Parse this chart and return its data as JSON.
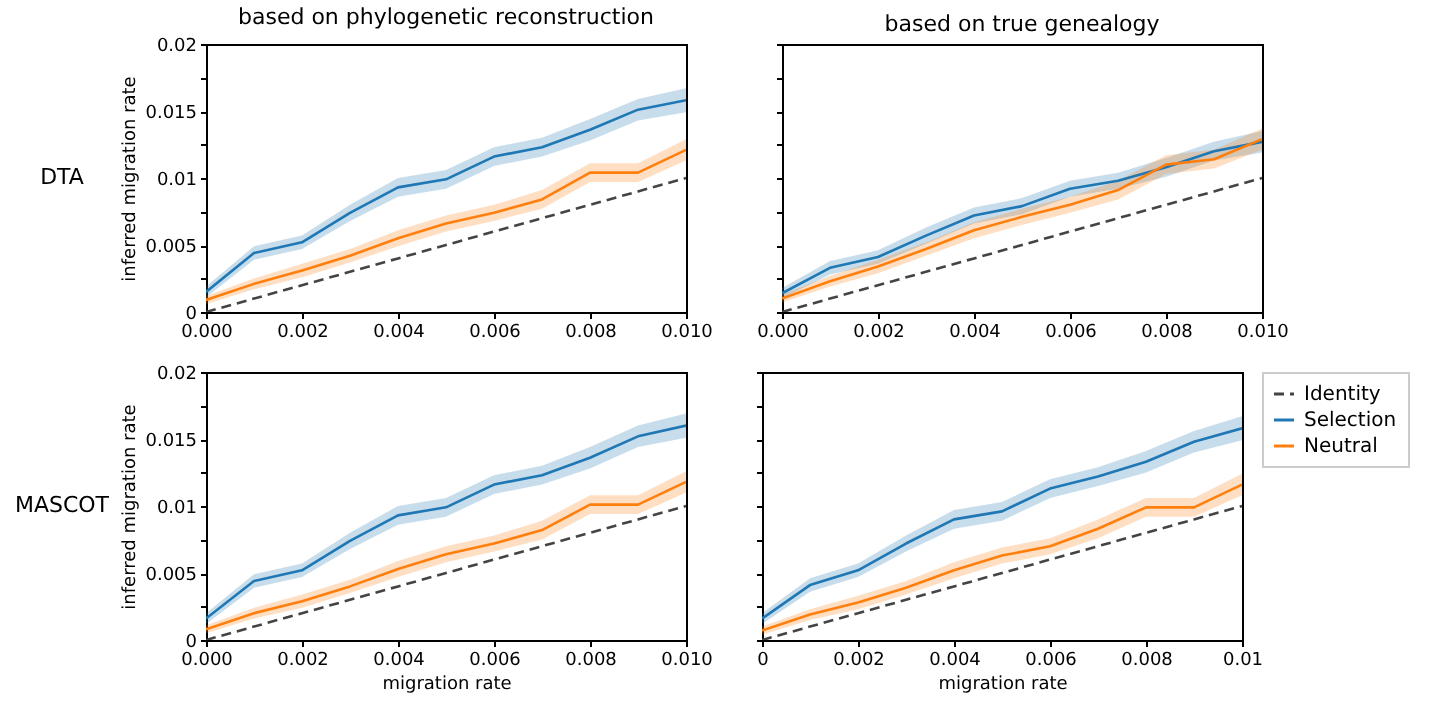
{
  "chart_data": [
    {
      "type": "line",
      "title": "based on phylogenetic reconstruction",
      "ylabel": "inferred migration rate",
      "annotations": [
        "DTA"
      ],
      "tick_labels": true,
      "legend": false,
      "grid": false,
      "x": [
        0,
        0.001,
        0.002,
        0.003,
        0.004,
        0.005,
        0.006,
        0.007,
        0.008,
        0.009,
        0.01
      ],
      "xlim": [
        0,
        0.01
      ],
      "ylim": [
        0,
        0.02
      ],
      "xticks": [
        {
          "value": 0,
          "label": "0.000"
        },
        {
          "value": 0.002,
          "label": "0.002"
        },
        {
          "value": 0.004,
          "label": "0.004"
        },
        {
          "value": 0.006,
          "label": "0.006"
        },
        {
          "value": 0.008,
          "label": "0.008"
        },
        {
          "value": 0.01,
          "label": "0.010"
        }
      ],
      "yticks": [
        0,
        {
          "value": 0.0025,
          "label": null
        },
        0.005,
        {
          "value": 0.0075,
          "label": null
        },
        0.01,
        {
          "value": 0.0125,
          "label": null
        },
        0.015,
        {
          "value": 0.0175,
          "label": null
        },
        0.02
      ],
      "series": [
        {
          "color": "#444444",
          "line_style": "dashed",
          "values": [
            0,
            0.001,
            0.002,
            0.003,
            0.004,
            0.005,
            0.006,
            0.007,
            0.008,
            0.009,
            0.01
          ]
        },
        {
          "color": "#1f77b4",
          "line_style": "solid",
          "values": [
            0.0015,
            0.0044,
            0.0052,
            0.0074,
            0.0093,
            0.0099,
            0.0116,
            0.0123,
            0.0136,
            0.0151,
            0.0158
          ],
          "lower": [
            0.0011,
            0.0039,
            0.0047,
            0.0068,
            0.0086,
            0.0092,
            0.0109,
            0.0116,
            0.0128,
            0.0143,
            0.0149
          ],
          "upper": [
            0.0019,
            0.0049,
            0.0057,
            0.008,
            0.01,
            0.0106,
            0.0123,
            0.013,
            0.0144,
            0.0159,
            0.0167
          ]
        },
        {
          "color": "#ff7f0e",
          "line_style": "solid",
          "values": [
            0.0009,
            0.0021,
            0.0031,
            0.0042,
            0.0055,
            0.0066,
            0.0074,
            0.0084,
            0.0104,
            0.0104,
            0.0121
          ],
          "lower": [
            0.0006,
            0.0017,
            0.0026,
            0.0037,
            0.0049,
            0.006,
            0.0068,
            0.0077,
            0.0097,
            0.0097,
            0.0113
          ],
          "upper": [
            0.0012,
            0.0025,
            0.0036,
            0.0047,
            0.0061,
            0.0072,
            0.008,
            0.0091,
            0.0111,
            0.0111,
            0.0129
          ]
        }
      ]
    },
    {
      "type": "line",
      "title": "based on true genealogy",
      "tick_labels": "x",
      "legend": false,
      "grid": false,
      "x": [
        0,
        0.001,
        0.002,
        0.003,
        0.004,
        0.005,
        0.006,
        0.007,
        0.008,
        0.009,
        0.01
      ],
      "xlim": [
        0,
        0.01
      ],
      "ylim": [
        0,
        0.02
      ],
      "xticks": [
        {
          "value": 0,
          "label": "0.000"
        },
        {
          "value": 0.002,
          "label": "0.002"
        },
        {
          "value": 0.004,
          "label": "0.004"
        },
        {
          "value": 0.006,
          "label": "0.006"
        },
        {
          "value": 0.008,
          "label": "0.008"
        },
        {
          "value": 0.01,
          "label": "0.010"
        }
      ],
      "yticks": [
        0,
        {
          "value": 0.0025,
          "label": null
        },
        0.005,
        {
          "value": 0.0075,
          "label": null
        },
        0.01,
        {
          "value": 0.0125,
          "label": null
        },
        0.015,
        {
          "value": 0.0175,
          "label": null
        },
        0.02
      ],
      "series": [
        {
          "color": "#444444",
          "line_style": "dashed",
          "values": [
            0,
            0.001,
            0.002,
            0.003,
            0.004,
            0.005,
            0.006,
            0.007,
            0.008,
            0.009,
            0.01
          ]
        },
        {
          "color": "#1f77b4",
          "line_style": "solid",
          "values": [
            0.0014,
            0.0033,
            0.0041,
            0.0057,
            0.0072,
            0.0079,
            0.0092,
            0.0098,
            0.0108,
            0.012,
            0.0127
          ],
          "lower": [
            0.001,
            0.0028,
            0.0036,
            0.0051,
            0.0066,
            0.0073,
            0.0086,
            0.0092,
            0.0101,
            0.0113,
            0.0119
          ],
          "upper": [
            0.0018,
            0.0038,
            0.0046,
            0.0063,
            0.0078,
            0.0085,
            0.0098,
            0.0104,
            0.0115,
            0.0127,
            0.0135
          ]
        },
        {
          "color": "#ff7f0e",
          "line_style": "solid",
          "values": [
            0.001,
            0.0023,
            0.0034,
            0.0047,
            0.0061,
            0.0071,
            0.008,
            0.0091,
            0.011,
            0.0114,
            0.0129
          ],
          "lower": [
            0.0007,
            0.0019,
            0.0029,
            0.0042,
            0.0055,
            0.0065,
            0.0074,
            0.0084,
            0.0103,
            0.0107,
            0.0121
          ],
          "upper": [
            0.0013,
            0.0027,
            0.0039,
            0.0052,
            0.0067,
            0.0077,
            0.0086,
            0.0098,
            0.0117,
            0.0121,
            0.0137
          ]
        }
      ]
    },
    {
      "type": "line",
      "xlabel": "migration rate",
      "ylabel": "inferred migration rate",
      "annotations": [
        "MASCOT"
      ],
      "tick_labels": true,
      "legend": false,
      "grid": false,
      "x": [
        0,
        0.001,
        0.002,
        0.003,
        0.004,
        0.005,
        0.006,
        0.007,
        0.008,
        0.009,
        0.01
      ],
      "xlim": [
        0,
        0.01
      ],
      "ylim": [
        0,
        0.02
      ],
      "xticks": [
        {
          "value": 0,
          "label": "0.000"
        },
        {
          "value": 0.002,
          "label": "0.002"
        },
        {
          "value": 0.004,
          "label": "0.004"
        },
        {
          "value": 0.006,
          "label": "0.006"
        },
        {
          "value": 0.008,
          "label": "0.008"
        },
        {
          "value": 0.01,
          "label": "0.010"
        }
      ],
      "yticks": [
        0,
        {
          "value": 0.0025,
          "label": null
        },
        0.005,
        {
          "value": 0.0075,
          "label": null
        },
        0.01,
        {
          "value": 0.0125,
          "label": null
        },
        0.015,
        {
          "value": 0.0175,
          "label": null
        },
        0.02
      ],
      "series": [
        {
          "color": "#444444",
          "line_style": "dashed",
          "values": [
            0,
            0.001,
            0.002,
            0.003,
            0.004,
            0.005,
            0.006,
            0.007,
            0.008,
            0.009,
            0.01
          ]
        },
        {
          "color": "#1f77b4",
          "line_style": "solid",
          "values": [
            0.0016,
            0.0044,
            0.0052,
            0.0074,
            0.0093,
            0.0099,
            0.0116,
            0.0123,
            0.0136,
            0.0152,
            0.016
          ],
          "lower": [
            0.0012,
            0.0039,
            0.0047,
            0.0068,
            0.0086,
            0.0092,
            0.0109,
            0.0116,
            0.0128,
            0.0144,
            0.0151
          ],
          "upper": [
            0.002,
            0.0049,
            0.0057,
            0.008,
            0.01,
            0.0106,
            0.0123,
            0.013,
            0.0144,
            0.016,
            0.0169
          ]
        },
        {
          "color": "#ff7f0e",
          "line_style": "solid",
          "values": [
            0.0008,
            0.002,
            0.0029,
            0.004,
            0.0053,
            0.0064,
            0.0072,
            0.0082,
            0.0101,
            0.0101,
            0.0118
          ],
          "lower": [
            0.0005,
            0.0016,
            0.0024,
            0.0035,
            0.0047,
            0.0058,
            0.0066,
            0.0075,
            0.0094,
            0.0094,
            0.011
          ],
          "upper": [
            0.0011,
            0.0024,
            0.0034,
            0.0045,
            0.0059,
            0.007,
            0.0078,
            0.0089,
            0.0108,
            0.0108,
            0.0126
          ]
        }
      ]
    },
    {
      "type": "line",
      "xlabel": "migration rate",
      "tick_labels": "x",
      "legend": "right",
      "grid": false,
      "x": [
        0,
        0.001,
        0.002,
        0.003,
        0.004,
        0.005,
        0.006,
        0.007,
        0.008,
        0.009,
        0.01
      ],
      "xlim": [
        0,
        0.01
      ],
      "ylim": [
        0,
        0.02
      ],
      "xticks": [
        0,
        0.002,
        0.004,
        0.006,
        0.008,
        0.01
      ],
      "yticks": [
        0,
        {
          "value": 0.0025,
          "label": null
        },
        0.005,
        {
          "value": 0.0075,
          "label": null
        },
        0.01,
        {
          "value": 0.0125,
          "label": null
        },
        0.015,
        {
          "value": 0.0175,
          "label": null
        },
        0.02
      ],
      "series": [
        {
          "name": "Identity",
          "color": "#444444",
          "line_style": "dashed",
          "values": [
            0,
            0.001,
            0.002,
            0.003,
            0.004,
            0.005,
            0.006,
            0.007,
            0.008,
            0.009,
            0.01
          ]
        },
        {
          "name": "Selection",
          "color": "#1f77b4",
          "line_style": "solid",
          "values": [
            0.0016,
            0.0041,
            0.0052,
            0.0072,
            0.009,
            0.0096,
            0.0113,
            0.0122,
            0.0133,
            0.0148,
            0.0158
          ],
          "lower": [
            0.0012,
            0.0036,
            0.0047,
            0.0066,
            0.0083,
            0.0089,
            0.0106,
            0.0115,
            0.0125,
            0.014,
            0.0149
          ],
          "upper": [
            0.002,
            0.0046,
            0.0057,
            0.0078,
            0.0097,
            0.0103,
            0.012,
            0.0129,
            0.0141,
            0.0156,
            0.0167
          ]
        },
        {
          "name": "Neutral",
          "color": "#ff7f0e",
          "line_style": "solid",
          "values": [
            0.0007,
            0.0019,
            0.0028,
            0.0039,
            0.0052,
            0.0063,
            0.007,
            0.0083,
            0.0099,
            0.0099,
            0.0116
          ],
          "lower": [
            0.0004,
            0.0015,
            0.0023,
            0.0034,
            0.0046,
            0.0057,
            0.0064,
            0.0076,
            0.0092,
            0.0092,
            0.0108
          ],
          "upper": [
            0.001,
            0.0023,
            0.0033,
            0.0044,
            0.0058,
            0.0069,
            0.0076,
            0.009,
            0.0106,
            0.0106,
            0.0124
          ]
        }
      ]
    }
  ]
}
